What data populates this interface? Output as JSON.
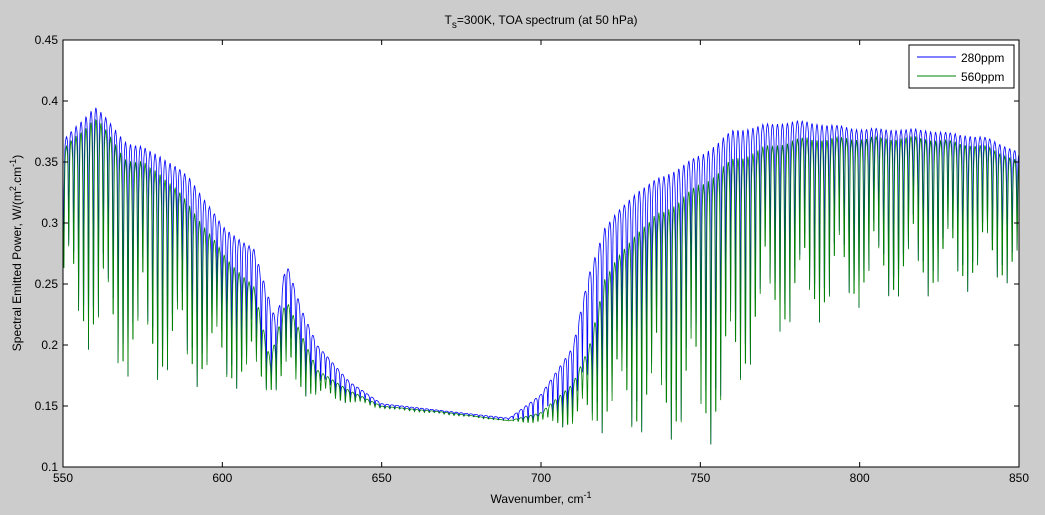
{
  "chart_data": {
    "type": "line",
    "title_main": "T",
    "title_sub": "s",
    "title_rest": "=300K, TOA spectrum (at 50 hPa)",
    "xlabel": "Wavenumber, cm",
    "xlabel_sup": "-1",
    "ylabel": "Spectral Emitted Power, W/(m",
    "ylabel_sup1": "2",
    "ylabel_mid": ".cm",
    "ylabel_sup2": "-1",
    "ylabel_end": ")",
    "xlim": [
      550,
      850
    ],
    "ylim": [
      0.1,
      0.45
    ],
    "xticks": [
      "550",
      "600",
      "650",
      "700",
      "750",
      "800",
      "850"
    ],
    "yticks": [
      "0.1",
      "0.15",
      "0.2",
      "0.25",
      "0.3",
      "0.35",
      "0.4",
      "0.45"
    ],
    "legend_position": "top-right",
    "line_spacing_cm": 1.55,
    "floor": [
      [
        550,
        0.22
      ],
      [
        565,
        0.175
      ],
      [
        570,
        0.17
      ],
      [
        620,
        0.16
      ],
      [
        650,
        0.148
      ],
      [
        700,
        0.135
      ],
      [
        720,
        0.127
      ],
      [
        740,
        0.12
      ],
      [
        758,
        0.118
      ],
      [
        768,
        0.2
      ],
      [
        800,
        0.23
      ],
      [
        850,
        0.25
      ]
    ],
    "series": [
      {
        "name": "280ppm",
        "color": "#0000ff",
        "envelope": [
          [
            550,
            0.37
          ],
          [
            560,
            0.4
          ],
          [
            570,
            0.37
          ],
          [
            580,
            0.36
          ],
          [
            590,
            0.34
          ],
          [
            600,
            0.3
          ],
          [
            610,
            0.28
          ],
          [
            617,
            0.22
          ],
          [
            620,
            0.27
          ],
          [
            625,
            0.23
          ],
          [
            630,
            0.2
          ],
          [
            640,
            0.17
          ],
          [
            650,
            0.152
          ],
          [
            670,
            0.146
          ],
          [
            690,
            0.14
          ],
          [
            700,
            0.16
          ],
          [
            710,
            0.2
          ],
          [
            715,
            0.26
          ],
          [
            720,
            0.3
          ],
          [
            730,
            0.33
          ],
          [
            740,
            0.345
          ],
          [
            750,
            0.36
          ],
          [
            760,
            0.38
          ],
          [
            780,
            0.387
          ],
          [
            800,
            0.38
          ],
          [
            820,
            0.379
          ],
          [
            840,
            0.372
          ],
          [
            850,
            0.36
          ]
        ]
      },
      {
        "name": "560ppm",
        "color": "#008000",
        "envelope": [
          [
            550,
            0.365
          ],
          [
            560,
            0.395
          ],
          [
            570,
            0.36
          ],
          [
            580,
            0.35
          ],
          [
            590,
            0.32
          ],
          [
            600,
            0.28
          ],
          [
            610,
            0.25
          ],
          [
            615,
            0.19
          ],
          [
            620,
            0.24
          ],
          [
            625,
            0.21
          ],
          [
            630,
            0.18
          ],
          [
            640,
            0.163
          ],
          [
            650,
            0.15
          ],
          [
            670,
            0.145
          ],
          [
            690,
            0.138
          ],
          [
            700,
            0.145
          ],
          [
            710,
            0.17
          ],
          [
            715,
            0.2
          ],
          [
            720,
            0.26
          ],
          [
            730,
            0.3
          ],
          [
            740,
            0.32
          ],
          [
            750,
            0.34
          ],
          [
            760,
            0.36
          ],
          [
            780,
            0.375
          ],
          [
            800,
            0.375
          ],
          [
            820,
            0.375
          ],
          [
            840,
            0.367
          ],
          [
            850,
            0.355
          ]
        ]
      }
    ]
  }
}
